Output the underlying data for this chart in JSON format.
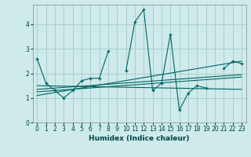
{
  "xlabel": "Humidex (Indice chaleur)",
  "ylabel": "",
  "bg_color": "#ceeaea",
  "grid_color": "#aacece",
  "line_color": "#006666",
  "xlim": [
    -0.5,
    23.5
  ],
  "ylim": [
    0,
    4.8
  ],
  "xticks": [
    0,
    1,
    2,
    3,
    4,
    5,
    6,
    7,
    8,
    9,
    10,
    11,
    12,
    13,
    14,
    15,
    16,
    17,
    18,
    19,
    20,
    21,
    22,
    23
  ],
  "yticks": [
    0,
    1,
    2,
    3,
    4
  ],
  "series1_x": [
    0,
    1,
    2,
    3,
    4,
    5,
    6,
    7,
    8,
    9,
    10,
    11,
    12,
    13,
    14,
    15,
    16,
    17,
    18,
    19,
    20,
    21,
    22,
    23
  ],
  "series1_y": [
    2.6,
    1.6,
    1.3,
    1.0,
    1.3,
    1.7,
    1.8,
    1.8,
    2.9,
    null,
    2.1,
    4.1,
    4.6,
    1.3,
    1.6,
    3.6,
    0.5,
    1.2,
    1.5,
    1.4,
    null,
    2.2,
    2.5,
    2.4
  ],
  "trend1_x": [
    0,
    23
  ],
  "trend1_y": [
    1.35,
    1.95
  ],
  "trend2_x": [
    0,
    23
  ],
  "trend2_y": [
    1.25,
    1.85
  ],
  "trend3_x": [
    0,
    23
  ],
  "trend3_y": [
    1.1,
    2.5
  ],
  "trend4_x": [
    0,
    23
  ],
  "trend4_y": [
    1.5,
    1.35
  ]
}
